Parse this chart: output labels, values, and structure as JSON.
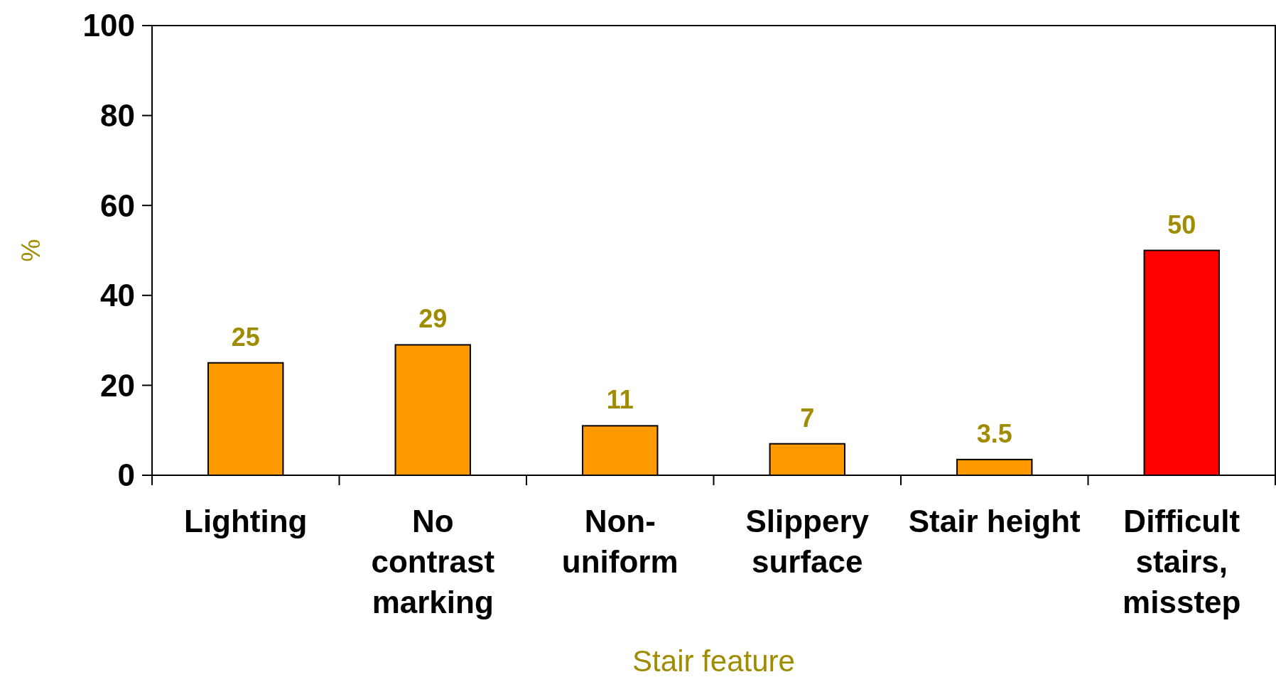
{
  "chart_data": {
    "type": "bar",
    "xlabel": "Stair feature",
    "ylabel": "%",
    "categories": [
      "Lighting",
      "No contrast marking",
      "Non-uniform",
      "Slippery surface",
      "Stair height",
      "Difficult stairs, misstep"
    ],
    "values": [
      25,
      29,
      11,
      7,
      3.5,
      50
    ],
    "colors": [
      "#ff9900",
      "#ff9900",
      "#ff9900",
      "#ff9900",
      "#ff9900",
      "#ff0000"
    ],
    "ylim": [
      0,
      100
    ],
    "yticks": [
      0,
      20,
      40,
      60,
      80,
      100
    ],
    "data_labels": true,
    "grid": false
  }
}
